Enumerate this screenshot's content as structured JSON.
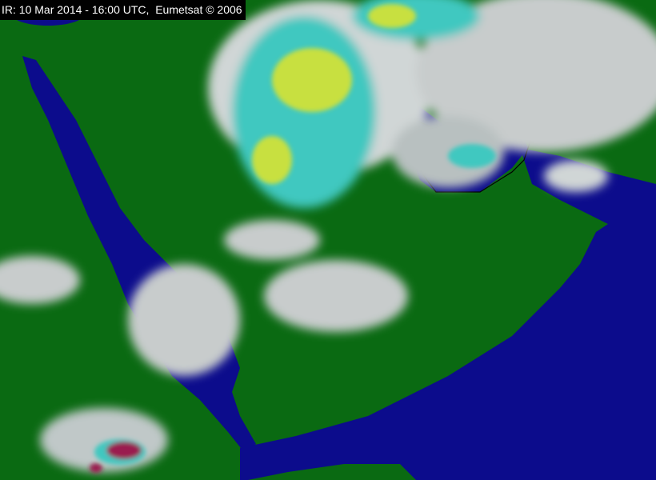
{
  "caption": "IR: 10 Mar 2014 - 16:00 UTC,  Eumetsat © 2006",
  "image_type": "infrared satellite image",
  "colors": {
    "land": "#0a6a12",
    "sea": "#0c0c8c",
    "cloud_low": "#d8d8d8",
    "cloud_mid": "#3fc8c0",
    "cloud_high": "#c8e040",
    "cloud_severe": "#9a1a50"
  }
}
